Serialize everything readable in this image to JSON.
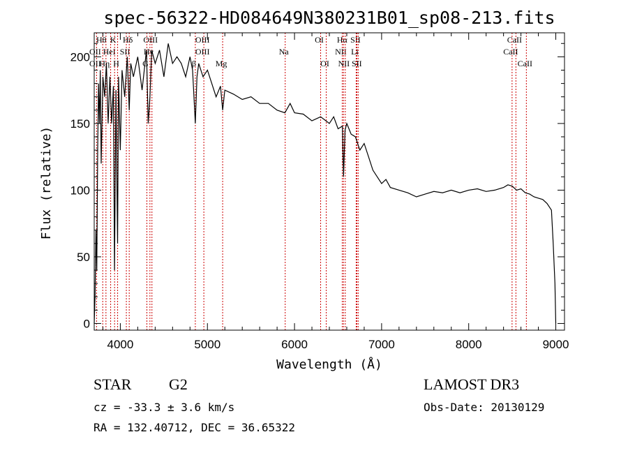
{
  "chart_data": {
    "type": "line",
    "title": "spec-56322-HD084649N380231B01_sp08-213.fits",
    "xlabel": "Wavelength (Å)",
    "ylabel": "Flux (relative)",
    "xlim": [
      3700,
      9100
    ],
    "ylim": [
      -5,
      218
    ],
    "xticks": [
      4000,
      5000,
      6000,
      7000,
      8000,
      9000
    ],
    "yticks": [
      0,
      50,
      100,
      150,
      200
    ],
    "grid": false,
    "series": [
      {
        "name": "spectrum",
        "x": [
          3700,
          3710,
          3720,
          3730,
          3740,
          3750,
          3760,
          3770,
          3780,
          3800,
          3820,
          3840,
          3860,
          3880,
          3900,
          3920,
          3933,
          3950,
          3968,
          3980,
          4000,
          4020,
          4050,
          4080,
          4102,
          4120,
          4150,
          4200,
          4250,
          4300,
          4320,
          4340,
          4360,
          4400,
          4450,
          4500,
          4550,
          4600,
          4650,
          4700,
          4750,
          4800,
          4830,
          4861,
          4880,
          4900,
          4950,
          5000,
          5050,
          5100,
          5150,
          5175,
          5200,
          5300,
          5400,
          5500,
          5600,
          5700,
          5800,
          5890,
          5950,
          6000,
          6100,
          6200,
          6300,
          6400,
          6450,
          6500,
          6550,
          6563,
          6580,
          6600,
          6650,
          6700,
          6750,
          6800,
          6850,
          6900,
          6950,
          7000,
          7050,
          7100,
          7200,
          7300,
          7400,
          7500,
          7600,
          7700,
          7800,
          7900,
          8000,
          8100,
          8200,
          8300,
          8400,
          8450,
          8500,
          8550,
          8600,
          8650,
          8700,
          8750,
          8800,
          8850,
          8900,
          8950,
          8970,
          8990,
          9000
        ],
        "values": [
          0,
          20,
          70,
          40,
          130,
          180,
          150,
          190,
          120,
          185,
          170,
          195,
          150,
          185,
          150,
          178,
          40,
          175,
          60,
          185,
          130,
          190,
          170,
          200,
          160,
          195,
          185,
          200,
          175,
          205,
          150,
          170,
          205,
          195,
          205,
          185,
          210,
          195,
          200,
          195,
          185,
          200,
          190,
          150,
          185,
          195,
          185,
          190,
          180,
          170,
          178,
          160,
          175,
          172,
          168,
          170,
          165,
          165,
          160,
          158,
          165,
          158,
          157,
          152,
          155,
          150,
          155,
          146,
          148,
          110,
          145,
          150,
          142,
          140,
          130,
          135,
          125,
          115,
          110,
          105,
          108,
          102,
          100,
          98,
          95,
          97,
          99,
          98,
          100,
          98,
          100,
          101,
          99,
          100,
          102,
          104,
          103,
          100,
          101,
          98,
          97,
          95,
          94,
          93,
          90,
          85,
          60,
          30,
          0
        ]
      }
    ],
    "line_markers": [
      {
        "label": "Hθ",
        "x": 3798,
        "row": 0
      },
      {
        "label": "OII",
        "x": 3727,
        "row": 1
      },
      {
        "label": "OII",
        "x": 3727,
        "row": 2
      },
      {
        "label": "Hη",
        "x": 3835,
        "row": 2
      },
      {
        "label": "HeI",
        "x": 3889,
        "row": 1
      },
      {
        "label": "K",
        "x": 3934,
        "row": 0
      },
      {
        "label": "H",
        "x": 3969,
        "row": 2
      },
      {
        "label": "SII",
        "x": 4069,
        "row": 1
      },
      {
        "label": "Hδ",
        "x": 4102,
        "row": 0
      },
      {
        "label": "OIII",
        "x": 4363,
        "row": 0
      },
      {
        "label": "Hγ",
        "x": 4340,
        "row": 1
      },
      {
        "label": "G",
        "x": 4305,
        "row": 2
      },
      {
        "label": "OIII",
        "x": 4959,
        "row": 0
      },
      {
        "label": "OIII",
        "x": 4959,
        "row": 1
      },
      {
        "label": "β",
        "x": 4861,
        "row": 2
      },
      {
        "label": "Mg",
        "x": 5175,
        "row": 2
      },
      {
        "label": "Na",
        "x": 5893,
        "row": 1
      },
      {
        "label": "OI",
        "x": 6300,
        "row": 0
      },
      {
        "label": "OI",
        "x": 6364,
        "row": 2
      },
      {
        "label": "Hα",
        "x": 6563,
        "row": 0
      },
      {
        "label": "SII",
        "x": 6716,
        "row": 0
      },
      {
        "label": "NII",
        "x": 6548,
        "row": 1
      },
      {
        "label": "Li",
        "x": 6708,
        "row": 1
      },
      {
        "label": "NII",
        "x": 6583,
        "row": 2
      },
      {
        "label": "SII",
        "x": 6731,
        "row": 2
      },
      {
        "label": "CaII",
        "x": 8542,
        "row": 0
      },
      {
        "label": "CaII",
        "x": 8498,
        "row": 1
      },
      {
        "label": "CaII",
        "x": 8662,
        "row": 2
      }
    ]
  },
  "info": {
    "object_class": "STAR",
    "subclass": "G2",
    "survey": "LAMOST DR3",
    "cz": "cz = -33.3 ± 3.6 km/s",
    "obs_date": "Obs-Date: 20130129",
    "radec": "RA = 132.40712, DEC =  36.65322"
  },
  "colors": {
    "marker_line": "#cc0000",
    "spectrum": "#000000"
  }
}
